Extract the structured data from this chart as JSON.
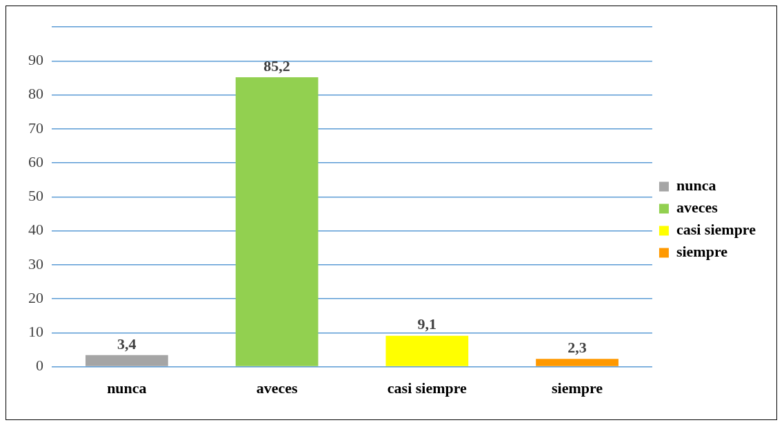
{
  "chart_data": {
    "type": "bar",
    "categories": [
      "nunca",
      "aveces",
      "casi siempre",
      "siempre"
    ],
    "series": [
      {
        "name": "nunca",
        "color": "#a5a5a5",
        "values": [
          3.4,
          null,
          null,
          null
        ],
        "value_labels": [
          "3,4",
          null,
          null,
          null
        ]
      },
      {
        "name": "aveces",
        "color": "#92d050",
        "values": [
          null,
          85.2,
          null,
          null
        ],
        "value_labels": [
          null,
          "85,2",
          null,
          null
        ]
      },
      {
        "name": "casi siempre",
        "color": "#ffff00",
        "values": [
          null,
          null,
          9.1,
          null
        ],
        "value_labels": [
          null,
          null,
          "9,1",
          null
        ]
      },
      {
        "name": "siempre",
        "color": "#ff9900",
        "values": [
          null,
          null,
          null,
          2.3
        ],
        "value_labels": [
          null,
          null,
          null,
          "2,3"
        ]
      }
    ],
    "ylim": [
      0,
      100
    ],
    "yticks": [
      0,
      10,
      20,
      30,
      40,
      50,
      60,
      70,
      80,
      90,
      {
        "value": 100,
        "label": null
      }
    ],
    "grid": "y",
    "legend": "right"
  }
}
